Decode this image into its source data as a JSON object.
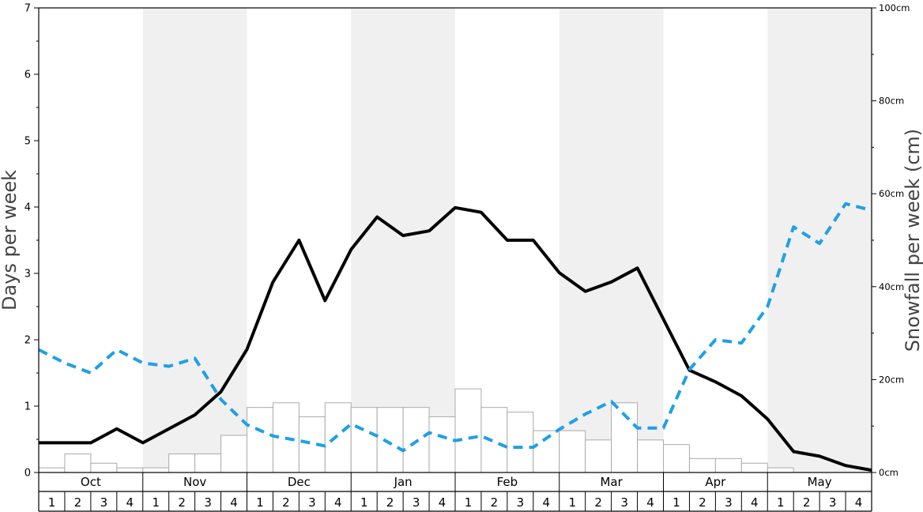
{
  "chart_data": {
    "type": "bar+line",
    "months": [
      "Oct",
      "Nov",
      "Dec",
      "Jan",
      "Feb",
      "Mar",
      "Apr",
      "May"
    ],
    "weeks": [
      "1",
      "2",
      "3",
      "4"
    ],
    "shaded_months": [
      "Nov",
      "Jan",
      "Mar",
      "May"
    ],
    "ylabel_left": "Days per week",
    "ylabel_right": "Snowfall per week (cm)",
    "left_axis": {
      "ylim": [
        0,
        7
      ],
      "ticks": [
        "0",
        "1",
        "2",
        "3",
        "4",
        "5",
        "6",
        "7"
      ]
    },
    "right_axis": {
      "ylim": [
        0,
        100
      ],
      "ticks": [
        {
          "value": 0,
          "label": "0cm"
        },
        {
          "value": 20,
          "label": "20cm"
        },
        {
          "value": 40,
          "label": "40cm"
        },
        {
          "value": 60,
          "label": "60cm"
        },
        {
          "value": 80,
          "label": "80cm"
        },
        {
          "value": 100,
          "label": "100cm"
        }
      ]
    },
    "series": [
      {
        "kind": "bar",
        "axis": "left",
        "values": [
          0.07,
          0.28,
          0.14,
          0.07,
          0.07,
          0.28,
          0.28,
          0.56,
          0.98,
          1.05,
          0.84,
          1.05,
          0.98,
          0.98,
          0.98,
          0.84,
          1.26,
          0.98,
          0.91,
          0.63,
          0.63,
          0.49,
          1.05,
          0.49,
          0.42,
          0.21,
          0.21,
          0.14,
          0.07,
          0.0,
          0.0,
          0.0
        ]
      },
      {
        "kind": "line",
        "style": "solid",
        "axis": "right",
        "color": "#000000",
        "values": [
          6.4,
          6.4,
          6.4,
          9.4,
          6.4,
          9.4,
          12.4,
          17.4,
          26.5,
          41.0,
          50.0,
          37.0,
          48.0,
          55.0,
          51.0,
          52.0,
          57.0,
          56.0,
          50.0,
          50.0,
          43.0,
          39.0,
          41.0,
          44.0,
          33.0,
          22.0,
          19.5,
          16.5,
          11.5,
          4.5,
          3.5,
          1.5,
          0.5
        ]
      },
      {
        "kind": "line",
        "style": "dashed",
        "axis": "left",
        "color": "#1ea0e6",
        "values": [
          1.85,
          1.65,
          1.5,
          1.85,
          1.65,
          1.6,
          1.72,
          1.1,
          0.72,
          0.55,
          0.48,
          0.4,
          0.73,
          0.55,
          0.33,
          0.6,
          0.48,
          0.55,
          0.38,
          0.38,
          0.65,
          0.88,
          1.07,
          0.67,
          0.67,
          1.55,
          2.0,
          1.95,
          2.5,
          3.7,
          3.45,
          4.05,
          3.95
        ]
      }
    ]
  }
}
